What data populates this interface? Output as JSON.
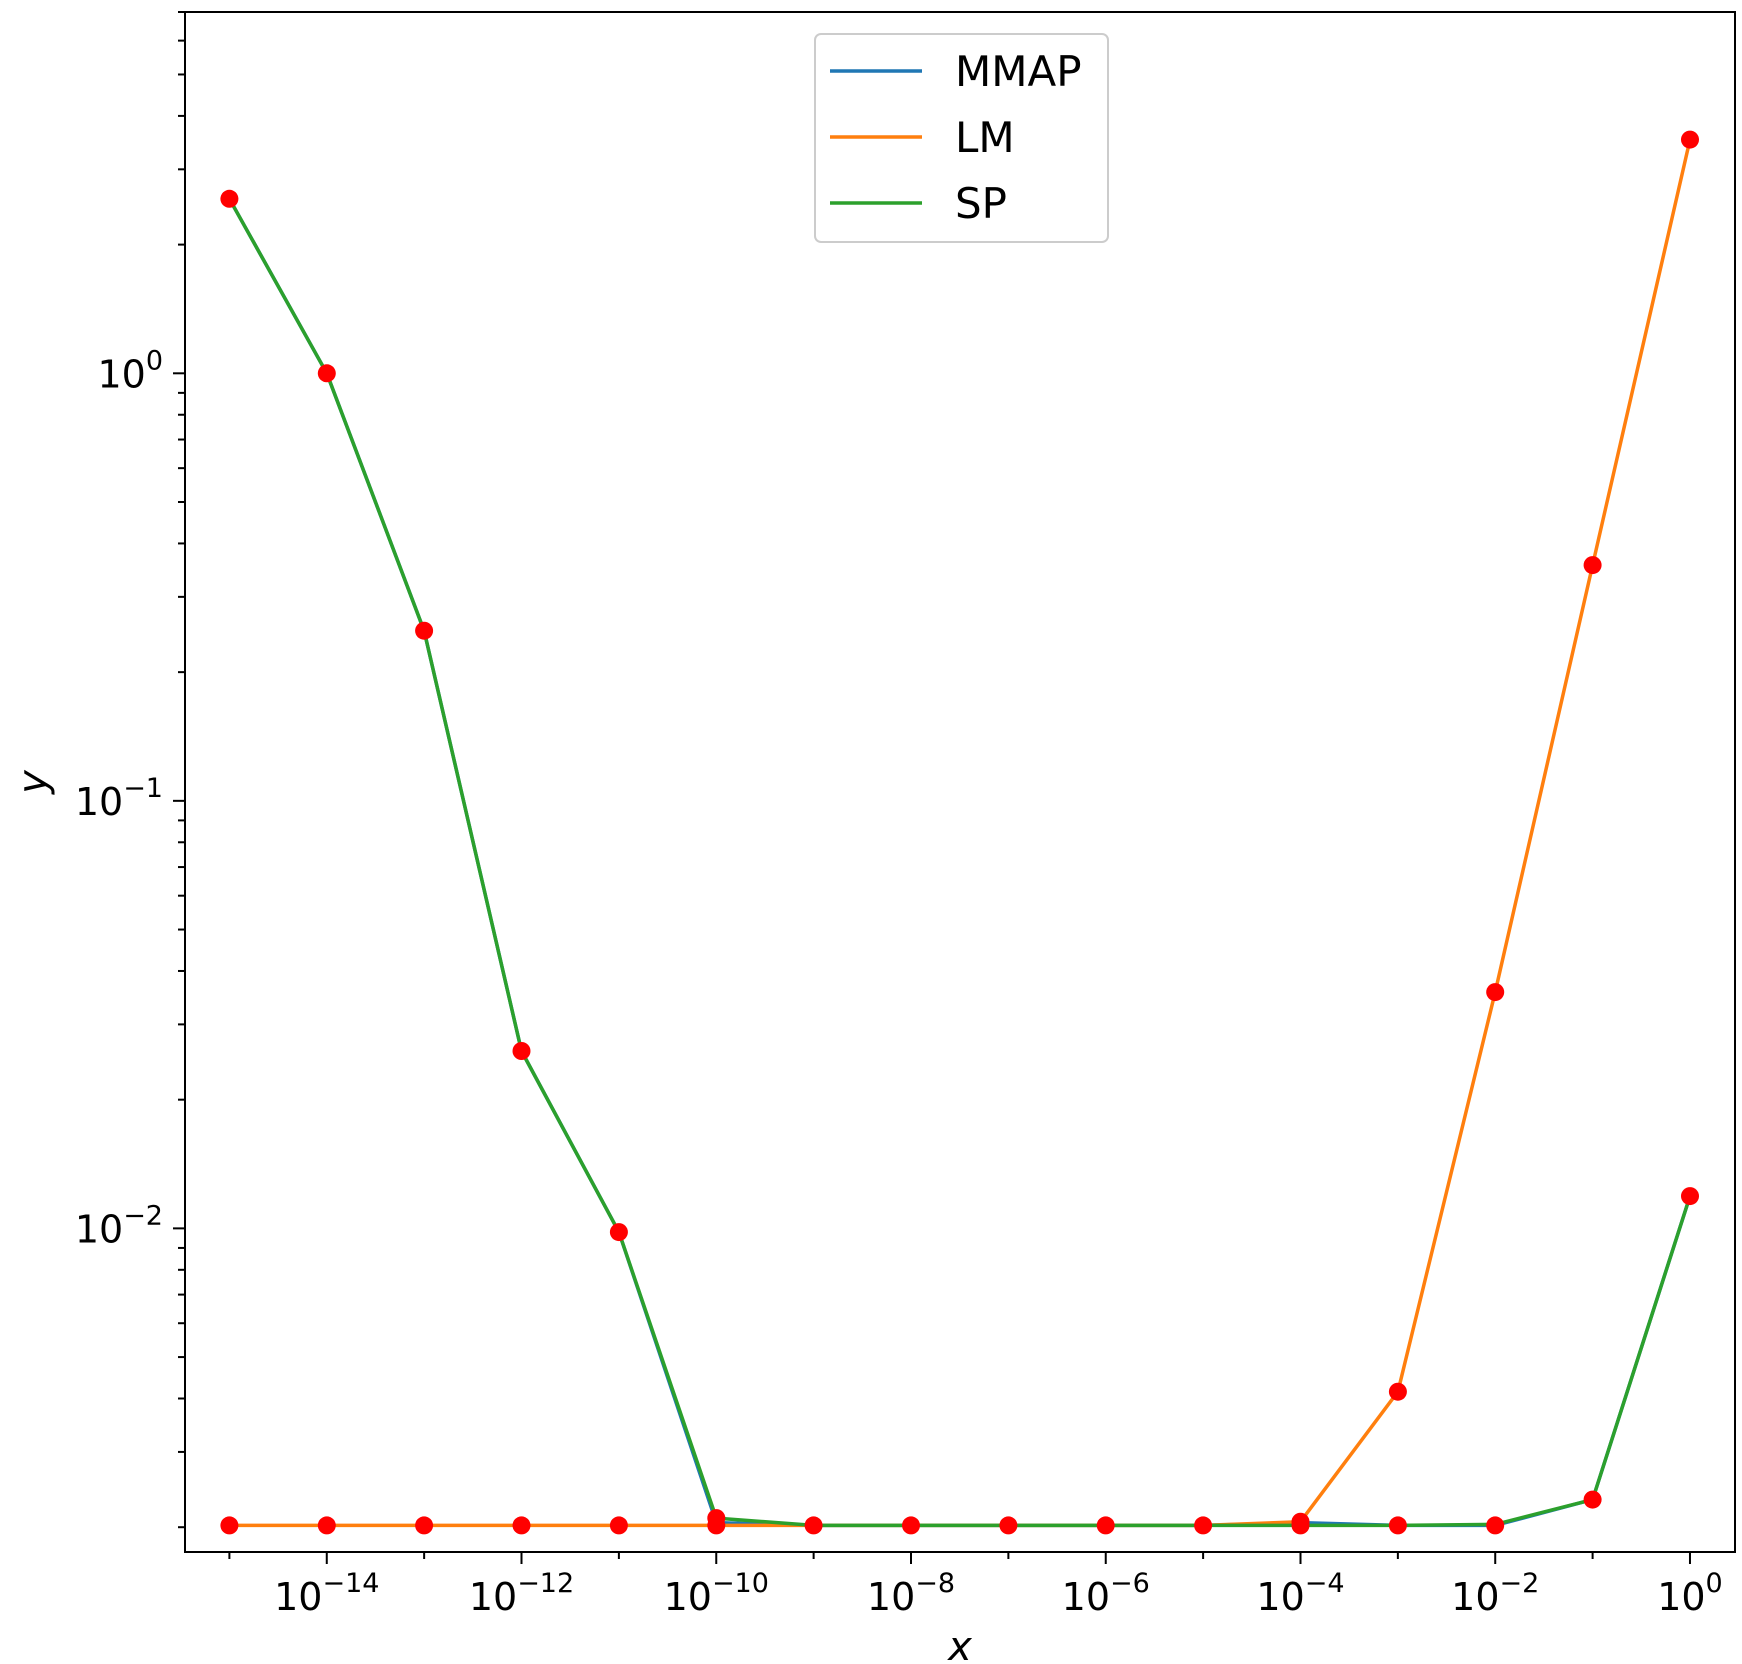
{
  "chart_data": {
    "type": "line",
    "title": "",
    "xlabel": "x",
    "ylabel": "y",
    "x_scale": "log",
    "y_scale": "log",
    "xlim": [
      3.5e-16,
      2.9
    ],
    "ylim": [
      0.00175,
      7.0
    ],
    "grid": false,
    "legend_position": "top-center",
    "x_ticks": [
      {
        "value": 1e-14,
        "base": "10",
        "exp": "−14"
      },
      {
        "value": 1e-12,
        "base": "10",
        "exp": "−12"
      },
      {
        "value": 1e-10,
        "base": "10",
        "exp": "−10"
      },
      {
        "value": 1e-08,
        "base": "10",
        "exp": "−8"
      },
      {
        "value": 1e-06,
        "base": "10",
        "exp": "−6"
      },
      {
        "value": 0.0001,
        "base": "10",
        "exp": "−4"
      },
      {
        "value": 0.01,
        "base": "10",
        "exp": "−2"
      },
      {
        "value": 1,
        "base": "10",
        "exp": "0"
      }
    ],
    "y_ticks": [
      {
        "value": 1,
        "base": "10",
        "exp": "0"
      },
      {
        "value": 0.1,
        "base": "10",
        "exp": "−1"
      },
      {
        "value": 0.01,
        "base": "10",
        "exp": "−2"
      }
    ],
    "x": [
      1e-15,
      1e-14,
      1e-13,
      1e-12,
      1e-11,
      1e-10,
      1e-09,
      1e-08,
      1e-07,
      1e-06,
      1e-05,
      0.0001,
      0.001,
      0.01,
      0.1,
      1
    ],
    "series": [
      {
        "name": "MMAP",
        "color": "#1f77b4",
        "values": [
          2.56,
          1.0,
          0.25,
          0.026,
          0.0098,
          0.00205,
          0.00202,
          0.00202,
          0.00202,
          0.00202,
          0.00202,
          0.00205,
          0.00202,
          0.00202,
          0.00232,
          0.0119
        ]
      },
      {
        "name": "LM",
        "color": "#ff7f0e",
        "values": [
          0.00202,
          0.00202,
          0.00202,
          0.00202,
          0.00202,
          0.00202,
          0.00202,
          0.00202,
          0.00202,
          0.00202,
          0.00202,
          0.00206,
          0.00415,
          0.0357,
          0.356,
          3.52
        ]
      },
      {
        "name": "SP",
        "color": "#2ca02c",
        "values": [
          2.56,
          1.0,
          0.25,
          0.026,
          0.0098,
          0.0021,
          0.00202,
          0.00202,
          0.00202,
          0.00202,
          0.00202,
          0.00202,
          0.00202,
          0.00203,
          0.00232,
          0.0119
        ]
      }
    ],
    "markers": {
      "color": "#ff0000"
    },
    "marker_points": [
      {
        "x": 1e-15,
        "y": 2.56
      },
      {
        "x": 1e-14,
        "y": 1.0
      },
      {
        "x": 1e-13,
        "y": 0.25
      },
      {
        "x": 1e-12,
        "y": 0.026
      },
      {
        "x": 1e-11,
        "y": 0.0098
      },
      {
        "x": 1e-10,
        "y": 0.0021
      },
      {
        "x": 1e-09,
        "y": 0.00202
      },
      {
        "x": 1e-08,
        "y": 0.00202
      },
      {
        "x": 1e-07,
        "y": 0.00202
      },
      {
        "x": 1e-06,
        "y": 0.00202
      },
      {
        "x": 1e-05,
        "y": 0.00202
      },
      {
        "x": 0.0001,
        "y": 0.00206
      },
      {
        "x": 0.001,
        "y": 0.00415
      },
      {
        "x": 0.01,
        "y": 0.0357
      },
      {
        "x": 0.1,
        "y": 0.356
      },
      {
        "x": 1,
        "y": 3.52
      },
      {
        "x": 1e-15,
        "y": 0.00202
      },
      {
        "x": 1e-14,
        "y": 0.00202
      },
      {
        "x": 1e-13,
        "y": 0.00202
      },
      {
        "x": 1e-12,
        "y": 0.00202
      },
      {
        "x": 1e-11,
        "y": 0.00202
      },
      {
        "x": 1e-10,
        "y": 0.00202
      },
      {
        "x": 0.0001,
        "y": 0.00202
      },
      {
        "x": 0.001,
        "y": 0.00202
      },
      {
        "x": 0.01,
        "y": 0.00202
      },
      {
        "x": 0.1,
        "y": 0.00232
      },
      {
        "x": 1,
        "y": 0.0119
      }
    ]
  }
}
